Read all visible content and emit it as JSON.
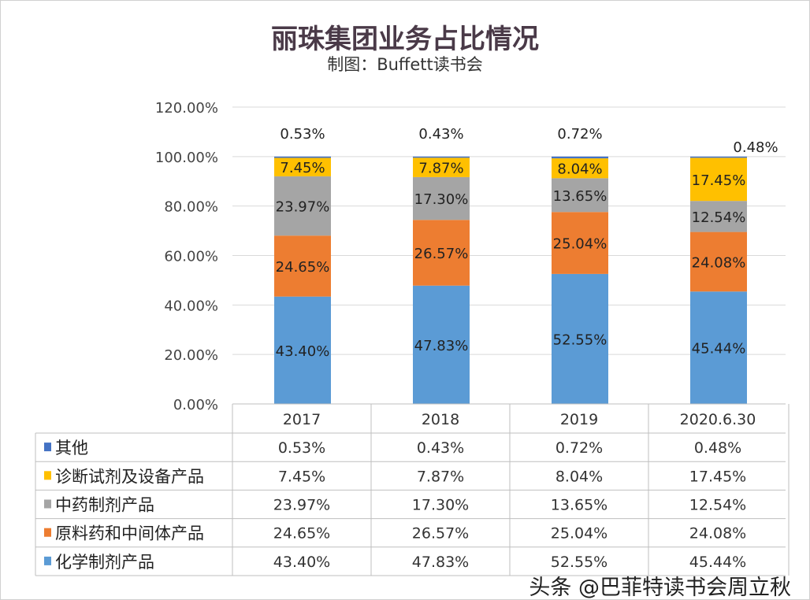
{
  "chart_data": {
    "type": "bar",
    "stacked": true,
    "title": "丽珠集团业务占比情况",
    "subtitle": "制图：Buffett读书会",
    "categories": [
      "2017",
      "2018",
      "2019",
      "2020.6.30"
    ],
    "ylim": [
      0,
      120
    ],
    "yticks": [
      "0.00%",
      "20.00%",
      "40.00%",
      "60.00%",
      "80.00%",
      "100.00%",
      "120.00%"
    ],
    "grid": true,
    "legend": "data-table-below",
    "series": [
      {
        "name": "化学制剂产品",
        "color": "#5b9bd5",
        "values": [
          43.4,
          47.83,
          52.55,
          45.44
        ],
        "labels": [
          "43.40%",
          "47.83%",
          "52.55%",
          "45.44%"
        ]
      },
      {
        "name": "原料药和中间体产品",
        "color": "#ed7d31",
        "values": [
          24.65,
          26.57,
          25.04,
          24.08
        ],
        "labels": [
          "24.65%",
          "26.57%",
          "25.04%",
          "24.08%"
        ]
      },
      {
        "name": "中药制剂产品",
        "color": "#a5a5a5",
        "values": [
          23.97,
          17.3,
          13.65,
          12.54
        ],
        "labels": [
          "23.97%",
          "17.30%",
          "13.65%",
          "12.54%"
        ]
      },
      {
        "name": "诊断试剂及设备产品",
        "color": "#ffc000",
        "values": [
          7.45,
          7.87,
          8.04,
          17.45
        ],
        "labels": [
          "7.45%",
          "7.87%",
          "8.04%",
          "17.45%"
        ]
      },
      {
        "name": "其他",
        "color": "#4472c4",
        "values": [
          0.53,
          0.43,
          0.72,
          0.48
        ],
        "labels": [
          "0.53%",
          "0.43%",
          "0.72%",
          "0.48%"
        ]
      }
    ]
  },
  "watermark": "头条 @巴菲特读书会周立秋"
}
